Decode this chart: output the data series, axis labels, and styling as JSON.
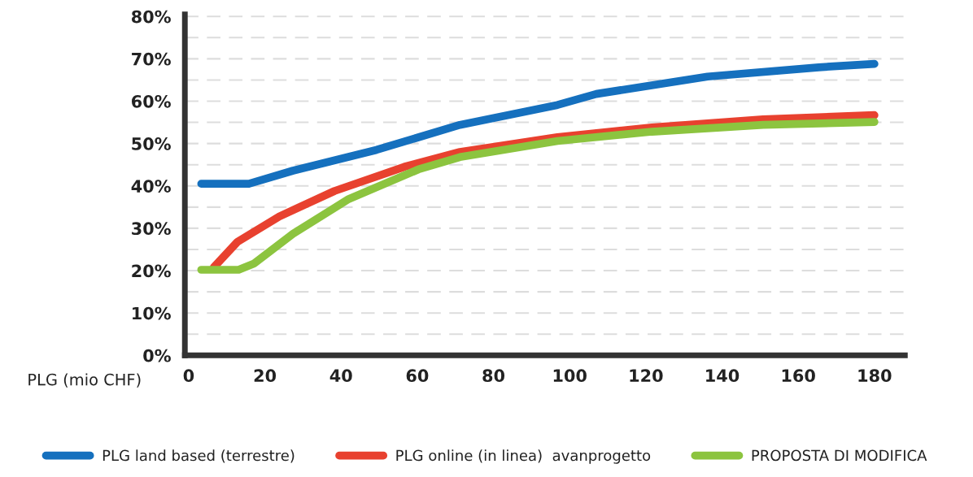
{
  "chart_data": {
    "type": "line",
    "xlabel": "PLG (mio CHF)",
    "xlim": [
      -1,
      188
    ],
    "xticks": [
      0,
      20,
      40,
      60,
      80,
      100,
      120,
      140,
      160,
      180
    ],
    "ylim": [
      0,
      80.5
    ],
    "yticks": [
      {
        "value": 0,
        "label": "0%"
      },
      {
        "value": 5,
        "label": null
      },
      {
        "value": 10,
        "label": "10%"
      },
      {
        "value": 15,
        "label": null
      },
      {
        "value": 20,
        "label": "20%"
      },
      {
        "value": 25,
        "label": null
      },
      {
        "value": 30,
        "label": "30%"
      },
      {
        "value": 35,
        "label": null
      },
      {
        "value": 40,
        "label": "40%"
      },
      {
        "value": 45,
        "label": null
      },
      {
        "value": 50,
        "label": "50%"
      },
      {
        "value": 55,
        "label": null
      },
      {
        "value": 60,
        "label": "60%"
      },
      {
        "value": 65,
        "label": null
      },
      {
        "value": 70,
        "label": "70%"
      },
      {
        "value": 75,
        "label": null
      },
      {
        "value": 80,
        "label": "80%"
      }
    ],
    "grid": "y",
    "legend": "bottom",
    "marker": "none",
    "line_style": "solid",
    "series": [
      {
        "name": "PLG land based (terrestre)",
        "color": "#1570be",
        "x": [
          3.3,
          15.8,
          27.4,
          49.3,
          71.2,
          96.8,
          107,
          136.2,
          165.4,
          180
        ],
        "values": [
          40.5,
          40.5,
          43.6,
          48.5,
          54.4,
          59.1,
          61.7,
          65.8,
          68.0,
          68.8
        ]
      },
      {
        "name": "PLG online (in linea)  avanprogetto",
        "color": "#e8412f",
        "x": [
          6.6,
          12.8,
          23.8,
          38.3,
          56.6,
          71.2,
          96.8,
          121.6,
          150.8,
          180
        ],
        "values": [
          20.8,
          26.8,
          32.8,
          38.8,
          44.5,
          48.0,
          51.5,
          53.8,
          55.7,
          56.7
        ]
      },
      {
        "name": "PROPOSTA DI MODIFICA",
        "color": "#8cc43f",
        "x": [
          3.3,
          13.1,
          17.2,
          27.4,
          42,
          60.3,
          71.2,
          96.8,
          121.6,
          150.8,
          180
        ],
        "values": [
          20.2,
          20.2,
          21.7,
          28.7,
          36.9,
          43.9,
          46.8,
          50.6,
          52.8,
          54.4,
          55.1
        ]
      }
    ]
  }
}
